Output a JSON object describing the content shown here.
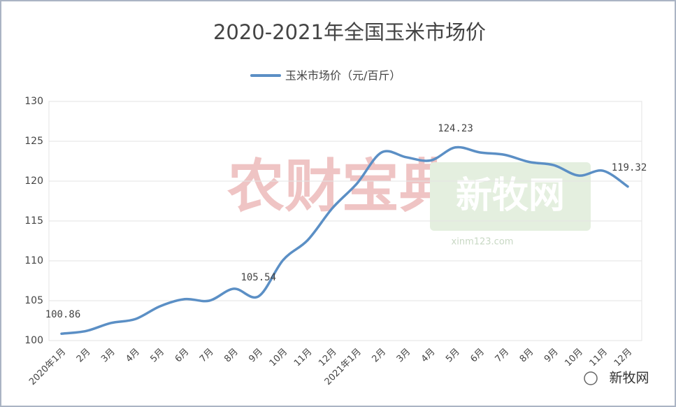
{
  "chart_data": {
    "type": "line",
    "title": "2020-2021年全国玉米市场价",
    "categories": [
      "2020年1月",
      "2月",
      "3月",
      "4月",
      "5月",
      "6月",
      "7月",
      "8月",
      "9月",
      "10月",
      "11月",
      "12月",
      "2021年1月",
      "2月",
      "3月",
      "4月",
      "5月",
      "6月",
      "7月",
      "8月",
      "9月",
      "10月",
      "11月",
      "12月"
    ],
    "series": [
      {
        "name": "玉米市场价（元/百斤）",
        "color": "#5b8fc5",
        "values": [
          100.86,
          101.2,
          102.2,
          102.7,
          104.3,
          105.2,
          105.0,
          106.5,
          105.54,
          110.1,
          112.6,
          116.6,
          119.7,
          123.6,
          123.0,
          122.6,
          124.23,
          123.6,
          123.3,
          122.4,
          122.0,
          120.7,
          121.3,
          119.32
        ],
        "value_labels": [
          "100.86",
          null,
          null,
          null,
          null,
          null,
          null,
          null,
          "105.54",
          null,
          null,
          null,
          null,
          null,
          null,
          null,
          "124.23",
          null,
          null,
          null,
          null,
          null,
          null,
          "119.32"
        ]
      }
    ],
    "ylim": [
      100,
      130
    ],
    "yticks": [
      100,
      105,
      110,
      115,
      120,
      125,
      130
    ],
    "grid": true,
    "legend": "top",
    "annotations": [
      "农财宝典",
      "新牧网",
      "xinm123.com",
      "新牧网"
    ]
  }
}
